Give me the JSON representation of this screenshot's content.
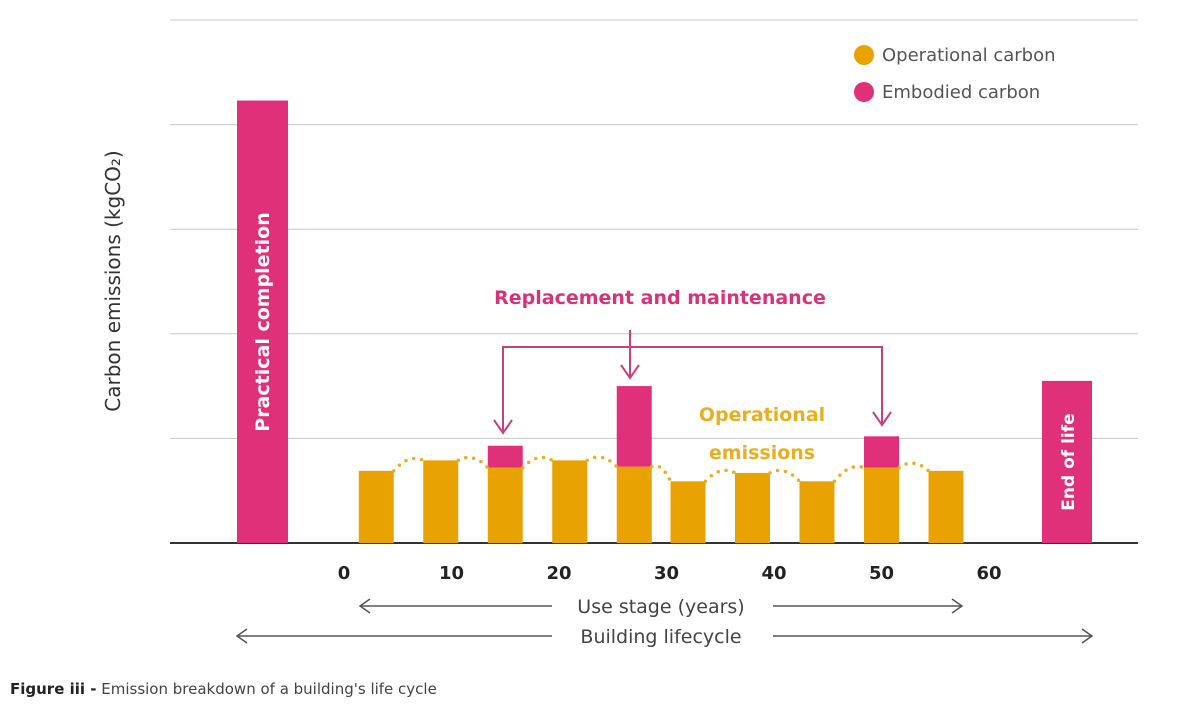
{
  "chart_data": {
    "type": "bar",
    "stacked": true,
    "ylabel": "Carbon emissions (kgCO₂)",
    "ylim": [
      0,
      5
    ],
    "y_tick_labels_shown": false,
    "grid": true,
    "legend_placement": "top-right",
    "legend": [
      {
        "name": "Operational carbon",
        "color": "#E8A202"
      },
      {
        "name": "Embodied carbon",
        "color": "#E0307A"
      }
    ],
    "x_ticks": [
      "0",
      "10",
      "20",
      "30",
      "40",
      "50",
      "60"
    ],
    "x_range_years": [
      0,
      60
    ],
    "stage_bars": [
      {
        "label": "Practical completion",
        "series": "Embodied carbon",
        "value": 4.23
      },
      {
        "label": "End of life",
        "series": "Embodied carbon",
        "value": 1.55
      }
    ],
    "use_stage": {
      "years": [
        3,
        9,
        15,
        21,
        27,
        32,
        38,
        44,
        50,
        56
      ],
      "series": [
        {
          "name": "Operational carbon",
          "values": [
            0.69,
            0.79,
            0.72,
            0.79,
            0.73,
            0.59,
            0.67,
            0.59,
            0.72,
            0.69
          ]
        },
        {
          "name": "Embodied carbon",
          "values": [
            0,
            0,
            0.21,
            0,
            0.77,
            0,
            0,
            0,
            0.3,
            0
          ]
        }
      ]
    },
    "annotations": {
      "replacement": "Replacement and maintenance",
      "operational_1": "Operational",
      "operational_2": "emissions",
      "use_stage": "Use stage (years)",
      "lifecycle": "Building lifecycle"
    }
  },
  "caption": {
    "bold": "Figure iii -",
    "text": " Emission breakdown of a building's life cycle"
  },
  "colors": {
    "operational": "#E8A202",
    "embodied": "#E0307A",
    "annotation": "#D6337A",
    "grid": "#c8c8c8",
    "axis": "#333333"
  }
}
